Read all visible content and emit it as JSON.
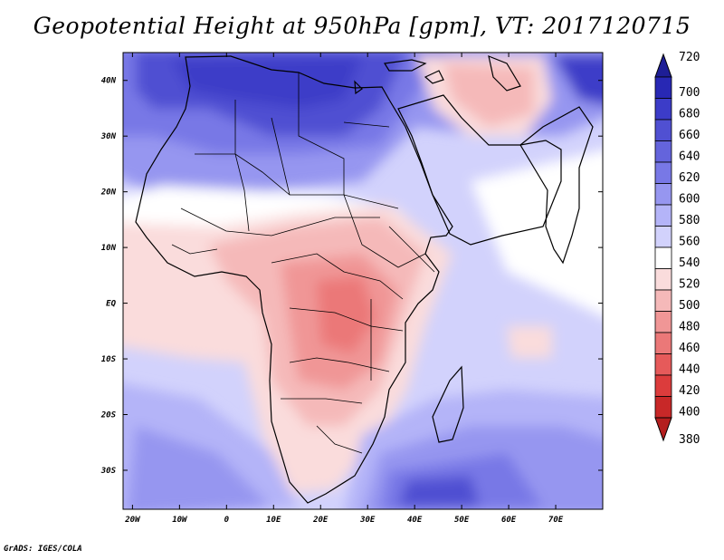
{
  "title": "Geopotential Height at 950hPa [gpm], VT: 2017120715",
  "credit": "GrADS: IGES/COLA",
  "map": {
    "lon_range": [
      -22,
      80
    ],
    "lat_range": [
      -37,
      45
    ],
    "lat_labels": [
      "40N",
      "30N",
      "20N",
      "10N",
      "EQ",
      "10S",
      "20S",
      "30S"
    ],
    "lat_values": [
      40,
      30,
      20,
      10,
      0,
      -10,
      -20,
      -30
    ],
    "lon_labels": [
      "20W",
      "10W",
      "0",
      "10E",
      "20E",
      "30E",
      "40E",
      "50E",
      "60E",
      "70E"
    ],
    "lon_values": [
      -20,
      -10,
      0,
      10,
      20,
      30,
      40,
      50,
      60,
      70
    ]
  },
  "colorbar": {
    "levels": [
      "720",
      "700",
      "680",
      "660",
      "640",
      "620",
      "600",
      "580",
      "560",
      "540",
      "520",
      "500",
      "480",
      "460",
      "440",
      "420",
      "400",
      "380"
    ],
    "colors": [
      "#1e1e96",
      "#2828b4",
      "#3c3cc8",
      "#5050d2",
      "#6464dc",
      "#7878e6",
      "#9696f0",
      "#b4b4f8",
      "#d2d2fc",
      "#ffffff",
      "#fadcdc",
      "#f5b9b9",
      "#f09696",
      "#eb7878",
      "#e65a5a",
      "#dc3c3c",
      "#c82828",
      "#b41e1e"
    ]
  }
}
